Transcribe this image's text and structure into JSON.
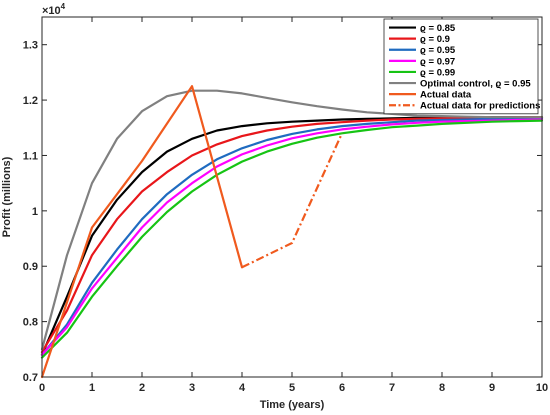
{
  "chart_data": {
    "type": "line",
    "title": "",
    "xlabel": "Time (years)",
    "ylabel": "Profit (millions)",
    "y_exponent_label": "×10",
    "y_exponent_power": "4",
    "xlim": [
      0,
      10
    ],
    "ylim": [
      0.7,
      1.35
    ],
    "x_ticks": [
      "0",
      "1",
      "2",
      "3",
      "4",
      "5",
      "6",
      "7",
      "8",
      "9",
      "10"
    ],
    "y_ticks": [
      "0.7",
      "0.8",
      "0.9",
      "1",
      "1.1",
      "1.2",
      "1.3"
    ],
    "legend_position": "top-right",
    "grid": false,
    "series": [
      {
        "name": "ϱ = 0.85",
        "color": "#000000",
        "style": "solid",
        "x": [
          0,
          0.5,
          1,
          1.5,
          2,
          2.5,
          3,
          3.5,
          4,
          4.5,
          5,
          5.5,
          6,
          6.5,
          7,
          7.5,
          8,
          8.5,
          9,
          9.5,
          10
        ],
        "y": [
          0.74,
          0.845,
          0.955,
          1.02,
          1.07,
          1.107,
          1.13,
          1.145,
          1.153,
          1.158,
          1.161,
          1.163,
          1.165,
          1.166,
          1.167,
          1.168,
          1.168,
          1.168,
          1.169,
          1.169,
          1.169
        ]
      },
      {
        "name": "ϱ = 0.9",
        "color": "#e8161a",
        "style": "solid",
        "x": [
          0,
          0.5,
          1,
          1.5,
          2,
          2.5,
          3,
          3.5,
          4,
          4.5,
          5,
          5.5,
          6,
          6.5,
          7,
          7.5,
          8,
          8.5,
          9,
          9.5,
          10
        ],
        "y": [
          0.745,
          0.82,
          0.92,
          0.985,
          1.035,
          1.07,
          1.1,
          1.12,
          1.135,
          1.145,
          1.152,
          1.157,
          1.16,
          1.163,
          1.165,
          1.166,
          1.167,
          1.168,
          1.168,
          1.169,
          1.169
        ]
      },
      {
        "name": "ϱ = 0.95",
        "color": "#1f6bc0",
        "style": "solid",
        "x": [
          0,
          0.5,
          1,
          1.5,
          2,
          2.5,
          3,
          3.5,
          4,
          4.5,
          5,
          5.5,
          6,
          6.5,
          7,
          7.5,
          8,
          8.5,
          9,
          9.5,
          10
        ],
        "y": [
          0.74,
          0.795,
          0.87,
          0.93,
          0.985,
          1.03,
          1.065,
          1.093,
          1.113,
          1.128,
          1.139,
          1.147,
          1.153,
          1.157,
          1.16,
          1.163,
          1.164,
          1.165,
          1.166,
          1.167,
          1.167
        ]
      },
      {
        "name": "ϱ = 0.97",
        "color": "#ff00ff",
        "style": "solid",
        "x": [
          0,
          0.5,
          1,
          1.5,
          2,
          2.5,
          3,
          3.5,
          4,
          4.5,
          5,
          5.5,
          6,
          6.5,
          7,
          7.5,
          8,
          8.5,
          9,
          9.5,
          10
        ],
        "y": [
          0.74,
          0.79,
          0.86,
          0.915,
          0.97,
          1.015,
          1.05,
          1.08,
          1.102,
          1.118,
          1.131,
          1.14,
          1.147,
          1.152,
          1.156,
          1.159,
          1.161,
          1.162,
          1.163,
          1.164,
          1.165
        ]
      },
      {
        "name": "ϱ = 0.99",
        "color": "#16c414",
        "style": "solid",
        "x": [
          0,
          0.5,
          1,
          1.5,
          2,
          2.5,
          3,
          3.5,
          4,
          4.5,
          5,
          5.5,
          6,
          6.5,
          7,
          7.5,
          8,
          8.5,
          9,
          9.5,
          10
        ],
        "y": [
          0.735,
          0.78,
          0.845,
          0.9,
          0.953,
          0.998,
          1.035,
          1.065,
          1.089,
          1.107,
          1.121,
          1.132,
          1.14,
          1.146,
          1.151,
          1.154,
          1.157,
          1.159,
          1.161,
          1.162,
          1.163
        ]
      },
      {
        "name": "Optimal control, ϱ = 0.95",
        "color": "#808080",
        "style": "solid",
        "x": [
          0,
          0.5,
          1,
          1.5,
          2,
          2.5,
          3,
          3.5,
          4,
          4.5,
          5,
          5.5,
          6,
          6.5,
          7,
          7.5,
          8,
          8.5,
          9,
          9.5,
          10
        ],
        "y": [
          0.75,
          0.92,
          1.05,
          1.13,
          1.18,
          1.207,
          1.217,
          1.217,
          1.212,
          1.204,
          1.196,
          1.189,
          1.183,
          1.178,
          1.175,
          1.172,
          1.171,
          1.17,
          1.169,
          1.169,
          1.169
        ]
      },
      {
        "name": "Actual data",
        "color": "#f05a1e",
        "style": "solid",
        "x": [
          0,
          1,
          2,
          3,
          4
        ],
        "y": [
          0.7,
          0.97,
          1.09,
          1.225,
          0.898
        ]
      },
      {
        "name": "Actual data for predictions",
        "color": "#f05a1e",
        "style": "dashdot",
        "x": [
          4,
          5,
          6
        ],
        "y": [
          0.898,
          0.942,
          1.14
        ]
      }
    ]
  }
}
